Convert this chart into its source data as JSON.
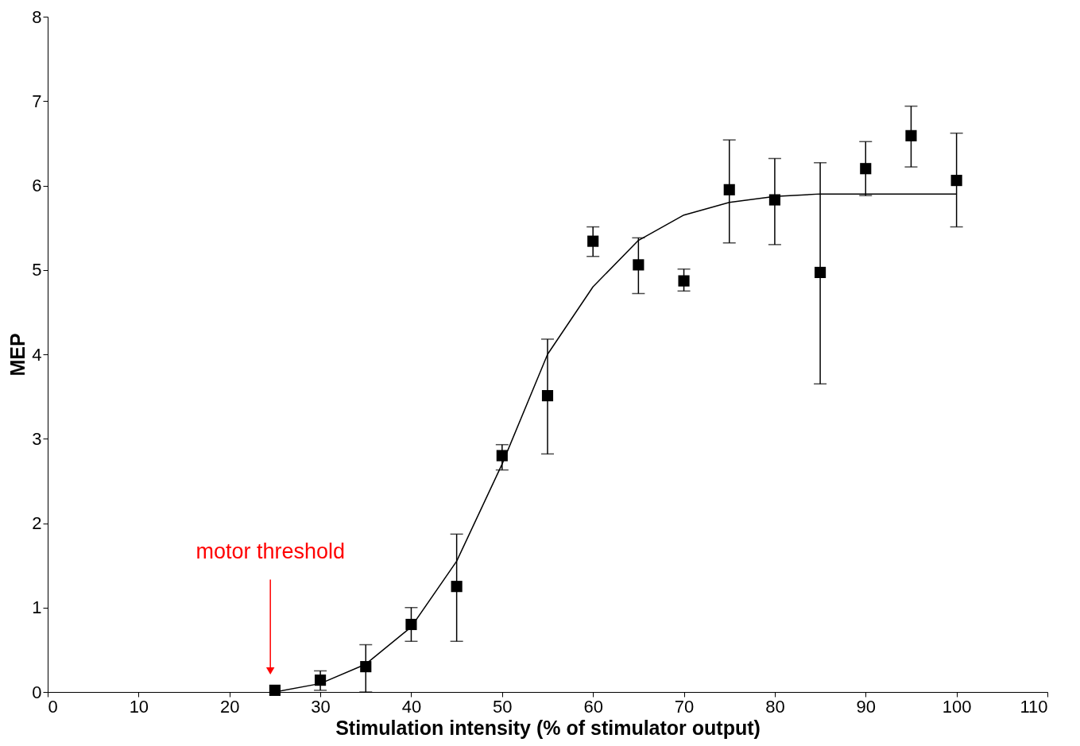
{
  "chart_data": {
    "type": "scatter",
    "xlabel": "Stimulation intensity (%  of stimulator output)",
    "ylabel": "MEP",
    "xlim": [
      0,
      110
    ],
    "xticks": [
      0,
      10,
      20,
      30,
      40,
      50,
      60,
      70,
      80,
      90,
      100,
      110
    ],
    "ylim": [
      0,
      8
    ],
    "yticks": [
      0,
      1,
      2,
      3,
      4,
      5,
      6,
      7,
      8
    ],
    "grid": false,
    "marker": "square",
    "series": [
      {
        "color": "#000000",
        "x": [
          25,
          30,
          35,
          40,
          45,
          50,
          55,
          60,
          65,
          70,
          75,
          80,
          85,
          90,
          95,
          100
        ],
        "values": [
          0.02,
          0.14,
          0.3,
          0.8,
          1.25,
          2.8,
          3.51,
          5.34,
          5.06,
          4.87,
          5.95,
          5.83,
          4.97,
          6.2,
          6.59,
          6.06
        ],
        "errors": [
          null,
          [
            0.02,
            0.25
          ],
          [
            0.0,
            0.56
          ],
          [
            0.6,
            1.0
          ],
          [
            0.6,
            1.87
          ],
          [
            2.63,
            2.93
          ],
          [
            2.82,
            4.18
          ],
          [
            5.16,
            5.51
          ],
          [
            4.72,
            5.38
          ],
          [
            4.75,
            5.01
          ],
          [
            5.32,
            6.54
          ],
          [
            5.3,
            6.32
          ],
          [
            3.65,
            6.27
          ],
          [
            5.88,
            6.52
          ],
          [
            6.22,
            6.94
          ],
          [
            5.51,
            6.62
          ]
        ]
      },
      {
        "type": "line",
        "color": "#000000",
        "line_style": "solid",
        "marker": "none",
        "x": [
          25,
          30,
          35,
          40,
          45,
          50,
          55,
          60,
          65,
          70,
          75,
          80,
          85,
          90,
          100
        ],
        "values": [
          0.0,
          0.1,
          0.33,
          0.77,
          1.55,
          2.7,
          4.0,
          4.8,
          5.35,
          5.65,
          5.8,
          5.87,
          5.9,
          5.9,
          5.9
        ]
      }
    ],
    "annotations": [
      {
        "text": "motor threshold",
        "x": 24.5,
        "y": 0.25
      }
    ]
  }
}
